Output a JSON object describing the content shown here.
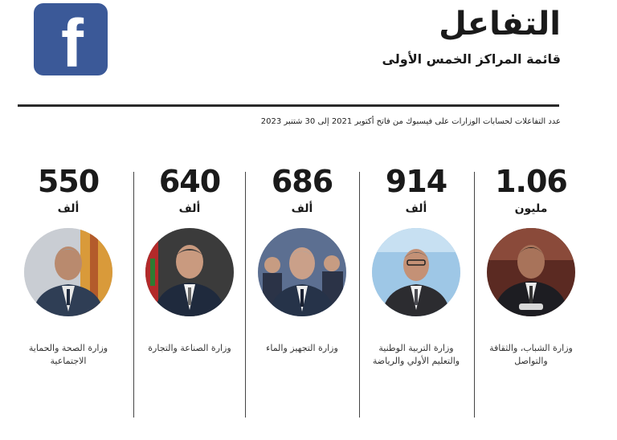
{
  "header": {
    "title": "التفاعل",
    "subtitle": "قائمة المراكز الخمس الأولى",
    "note": "عدد التفاعلات لحسابات الوزارات على فيسبوك من فاتح  أكتوبر 2021 إلى 30 شتنبر 2023",
    "logo_letter": "f",
    "brand_color": "#3b5998"
  },
  "ranking": [
    {
      "value": "1.06",
      "unit": "مليون",
      "ministry": "وزارة الشباب، والثقافة والتواصل"
    },
    {
      "value": "914",
      "unit": "ألف",
      "ministry": "وزارة التربية الوطنية والتعليم الأولي والرياضة"
    },
    {
      "value": "686",
      "unit": "ألف",
      "ministry": "وزارة التجهيز والماء"
    },
    {
      "value": "640",
      "unit": "ألف",
      "ministry": "وزارة الصناعة والتجارة"
    },
    {
      "value": "550",
      "unit": "ألف",
      "ministry": "وزارة الصحة والحماية الاجتماعية"
    }
  ]
}
